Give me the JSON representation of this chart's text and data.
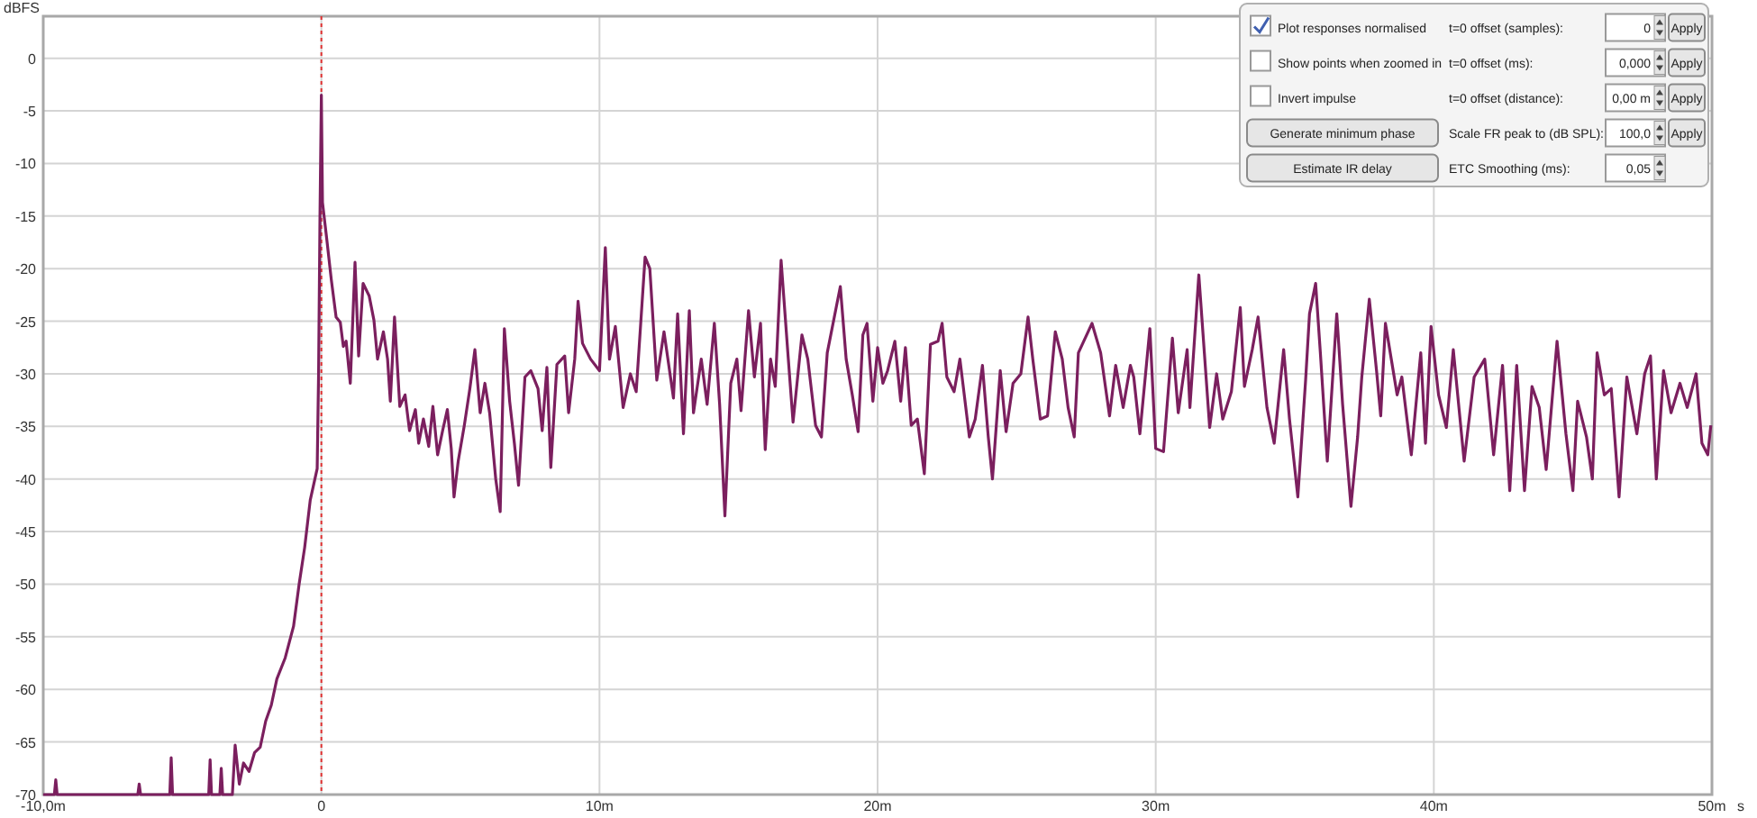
{
  "chart_data": {
    "type": "line",
    "ylabel": "dBFS",
    "xlabel": "s",
    "xlim": [
      -10,
      50
    ],
    "xticks": [
      {
        "value": -10,
        "label": "-10,0m"
      },
      0,
      {
        "value": 10,
        "label": "10m"
      },
      {
        "value": 20,
        "label": "20m"
      },
      {
        "value": 30,
        "label": "30m"
      },
      {
        "value": 40,
        "label": "40m"
      },
      {
        "value": 50,
        "label": "50m"
      }
    ],
    "ylim": [
      -70,
      4
    ],
    "yticks": [
      -70,
      -65,
      -60,
      -55,
      -50,
      -45,
      -40,
      -35,
      -30,
      -25,
      -20,
      -15,
      -10,
      -5,
      0
    ],
    "grid": true,
    "marker": "none",
    "line_style": "solid",
    "ref_lines": [
      {
        "axis": "x",
        "value": 0,
        "color": "#e03030",
        "line_style": "dotted"
      }
    ],
    "annotations": [
      "Plot responses normalised",
      "Show points when zoomed in",
      "Invert impulse",
      "Generate minimum phase",
      "Estimate IR delay",
      "t=0 offset (samples):",
      "t=0 offset (ms):",
      "t=0 offset (distance):",
      "Scale FR peak to (dB SPL):",
      "ETC Smoothing (ms):",
      "0",
      "0,000",
      "0,00 m",
      "100,0",
      "0,05",
      "Apply",
      "Apply",
      "Apply",
      "Apply"
    ],
    "series": [
      {
        "color": "#7b1f5e",
        "x": [
          -10,
          -9.6,
          -9.55,
          -9.5,
          -6.6,
          -6.55,
          -6.5,
          -5.45,
          -5.4,
          -5.35,
          -4.05,
          -4,
          -3.95,
          -3.65,
          -3.6,
          -3.55,
          -3.2,
          -3.1,
          -2.95,
          -2.8,
          -2.6,
          -2.4,
          -2.2,
          -2,
          -1.8,
          -1.6,
          -1.3,
          -1,
          -0.8,
          -0.6,
          -0.4,
          -0.15,
          -0.1,
          -0.05,
          0,
          0.04,
          0.19,
          0.36,
          0.53,
          0.68,
          0.79,
          0.89,
          1.04,
          1.21,
          1.34,
          1.5,
          1.72,
          1.89,
          2.02,
          2.23,
          2.38,
          2.48,
          2.63,
          2.82,
          3.01,
          3.17,
          3.38,
          3.5,
          3.67,
          3.86,
          4.01,
          4.18,
          4.36,
          4.53,
          4.67,
          4.77,
          4.92,
          5.14,
          5.34,
          5.52,
          5.71,
          5.88,
          6.05,
          6.27,
          6.43,
          6.58,
          6.77,
          6.94,
          7.09,
          7.32,
          7.53,
          7.79,
          7.94,
          8.11,
          8.25,
          8.47,
          8.75,
          8.89,
          9.11,
          9.23,
          9.39,
          9.68,
          10,
          10.21,
          10.36,
          10.57,
          10.85,
          11.11,
          11.32,
          11.64,
          11.81,
          12.06,
          12.32,
          12.66,
          12.81,
          13.02,
          13.23,
          13.38,
          13.66,
          13.87,
          14.13,
          14.32,
          14.51,
          14.72,
          14.94,
          15.09,
          15.36,
          15.57,
          15.79,
          15.96,
          16.15,
          16.32,
          16.53,
          16.79,
          16.96,
          17.28,
          17.49,
          17.77,
          17.98,
          18.19,
          18.66,
          18.87,
          19.09,
          19.3,
          19.47,
          19.62,
          19.83,
          20,
          20.19,
          20.36,
          20.62,
          20.83,
          21,
          21.21,
          21.43,
          21.68,
          21.9,
          22.17,
          22.32,
          22.49,
          22.75,
          22.96,
          23.3,
          23.51,
          23.77,
          23.98,
          24.13,
          24.41,
          24.62,
          24.87,
          25.15,
          25.41,
          25.58,
          25.85,
          26.11,
          26.39,
          26.64,
          26.85,
          27.07,
          27.22,
          27.71,
          28.02,
          28.34,
          28.56,
          28.83,
          29.09,
          29.21,
          29.43,
          29.79,
          30,
          30.28,
          30.6,
          30.81,
          31.13,
          31.23,
          31.55,
          31.94,
          32.19,
          32.41,
          32.72,
          33.04,
          33.19,
          33.47,
          33.68,
          34,
          34.26,
          34.6,
          34.81,
          35.11,
          35.39,
          35.53,
          35.75,
          35.92,
          36.17,
          36.51,
          36.72,
          37.02,
          37.26,
          37.41,
          37.68,
          37.94,
          38.09,
          38.26,
          38.47,
          38.68,
          38.85,
          39.19,
          39.53,
          39.7,
          39.9,
          40.17,
          40.45,
          40.7,
          41.09,
          41.45,
          41.83,
          42.15,
          42.47,
          42.73,
          42.98,
          43.26,
          43.53,
          43.79,
          44.04,
          44.43,
          44.75,
          45,
          45.17,
          45.49,
          45.7,
          45.87,
          46.13,
          46.38,
          46.66,
          46.94,
          47.3,
          47.58,
          47.79,
          48,
          48.26,
          48.53,
          48.85,
          49.11,
          49.43,
          49.64,
          49.85,
          49.96
        ],
        "values": [
          -70,
          -70,
          -68.6,
          -70,
          -70,
          -69,
          -70,
          -70,
          -66.5,
          -70,
          -70,
          -66.7,
          -70,
          -70,
          -67.5,
          -70,
          -70,
          -65.3,
          -69,
          -67,
          -67.8,
          -66,
          -65.5,
          -63,
          -61.5,
          -59,
          -57,
          -54,
          -50,
          -46.5,
          -42,
          -39,
          -30,
          -15,
          -3.5,
          -13.7,
          -17.1,
          -21.1,
          -24.6,
          -25.1,
          -27.4,
          -26.9,
          -30.9,
          -19.4,
          -28.3,
          -21.4,
          -22.6,
          -24.9,
          -28.6,
          -26,
          -28.6,
          -32.6,
          -24.6,
          -33.1,
          -32,
          -35.4,
          -33.4,
          -36.6,
          -34.3,
          -36.9,
          -33.1,
          -37.7,
          -35.4,
          -33.4,
          -37.1,
          -41.7,
          -38.3,
          -34.9,
          -31.4,
          -27.7,
          -33.7,
          -30.9,
          -33.7,
          -40,
          -43.1,
          -25.7,
          -32.6,
          -36.6,
          -40.6,
          -30.3,
          -29.7,
          -31.4,
          -35.4,
          -29.4,
          -38.9,
          -29.1,
          -28.3,
          -33.7,
          -28.6,
          -23.1,
          -27.1,
          -28.6,
          -29.7,
          -18,
          -28.6,
          -25.5,
          -33.2,
          -30,
          -31.7,
          -18.9,
          -20,
          -30.6,
          -26,
          -32.3,
          -24.3,
          -35.7,
          -24,
          -33.7,
          -28.6,
          -32.9,
          -25.2,
          -32.9,
          -43.5,
          -30.9,
          -28.6,
          -33.5,
          -24,
          -30.3,
          -25.2,
          -37.2,
          -28.6,
          -31.2,
          -19.2,
          -28.6,
          -34.6,
          -26.3,
          -28.6,
          -34.9,
          -36,
          -28,
          -21.7,
          -28.6,
          -32,
          -35.5,
          -26.3,
          -25.2,
          -32.6,
          -27.5,
          -30.9,
          -29.7,
          -26.9,
          -32.6,
          -27.5,
          -34.9,
          -34.3,
          -39.5,
          -27.2,
          -26.9,
          -25.2,
          -30.3,
          -31.7,
          -28.6,
          -36,
          -34.3,
          -29.2,
          -36,
          -40,
          -29.7,
          -35.5,
          -30.9,
          -30,
          -24.6,
          -28.6,
          -34.3,
          -34,
          -26,
          -28.6,
          -33.2,
          -36,
          -28,
          -25.2,
          -28,
          -34,
          -29.2,
          -33.2,
          -29.2,
          -30.3,
          -35.7,
          -25.7,
          -37.1,
          -37.4,
          -26.6,
          -33.7,
          -27.7,
          -33.2,
          -20.6,
          -35.1,
          -30,
          -34.3,
          -31.7,
          -23.7,
          -31.2,
          -27.7,
          -24.6,
          -33.2,
          -36.6,
          -27.7,
          -34.3,
          -41.7,
          -30.6,
          -24.3,
          -21.4,
          -28,
          -38.3,
          -24.3,
          -32.9,
          -42.6,
          -36,
          -30.3,
          -22.9,
          -29.7,
          -34,
          -25.2,
          -28.6,
          -32,
          -30.3,
          -37.7,
          -28,
          -36.6,
          -25.5,
          -32,
          -35.1,
          -27.7,
          -38.3,
          -30.3,
          -28.6,
          -37.7,
          -29.2,
          -41.1,
          -29.2,
          -41.1,
          -31.2,
          -33.2,
          -39.1,
          -26.9,
          -35.7,
          -41.1,
          -32.6,
          -36,
          -40,
          -28,
          -32,
          -31.4,
          -41.7,
          -30.3,
          -35.7,
          -30,
          -28.3,
          -40,
          -29.7,
          -33.7,
          -30.9,
          -33.2,
          -30,
          -36.6,
          -37.7,
          -34.9
        ]
      }
    ]
  }
}
